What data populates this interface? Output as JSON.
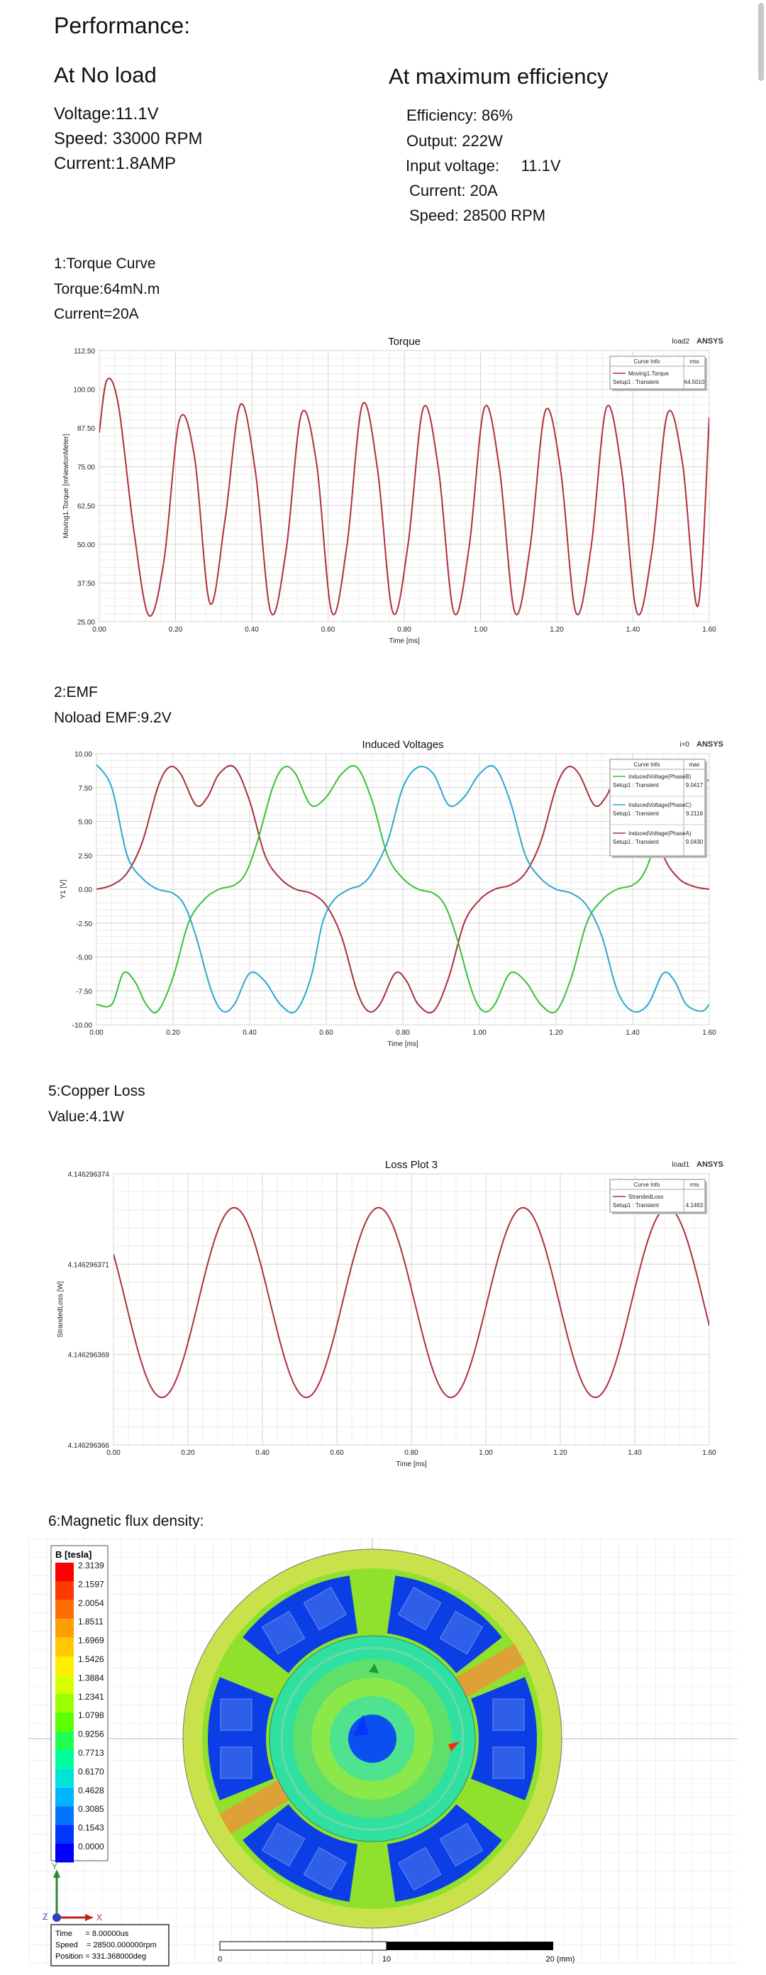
{
  "doc": {
    "title": "Performance:",
    "no_load": {
      "heading": "At No load",
      "lines": [
        "Voltage:11.1V",
        "Speed: 33000 RPM",
        "Current:1.8AMP"
      ]
    },
    "max_eff": {
      "heading": "At maximum efficiency",
      "lines": [
        "Efficiency: 86%",
        "Output: 222W",
        "Input voltage:     11.1V",
        "Current: 20A",
        "Speed: 28500 RPM"
      ]
    },
    "torque_section": {
      "lines": [
        "1:Torque Curve",
        "Torque:64mN.m",
        "Current=20A"
      ]
    },
    "emf_section": {
      "lines": [
        "2:EMF",
        "Noload EMF:9.2V"
      ]
    },
    "copper_section": {
      "lines": [
        "5:Copper Loss",
        "Value:4.1W"
      ]
    },
    "flux_section": {
      "lines": [
        "6:Magnetic flux density:"
      ]
    }
  },
  "chart_data": [
    {
      "type": "line",
      "title": "Torque",
      "tag": "load2",
      "brand": "ANSYS",
      "xlabel": "Time [ms]",
      "ylabel": "Moving1.Torque [mNewtonMeter]",
      "xlim": [
        0,
        1.6
      ],
      "ylim": [
        25,
        112.5
      ],
      "xticks": [
        "0.00",
        "0.20",
        "0.40",
        "0.60",
        "0.80",
        "1.00",
        "1.20",
        "1.40",
        "1.60"
      ],
      "yticks": [
        "25.00",
        "37.50",
        "50.00",
        "62.50",
        "75.00",
        "87.50",
        "100.00",
        "112.50"
      ],
      "legend": {
        "header": [
          "Curve Info",
          "rms"
        ],
        "entries": [
          {
            "name": "Moving1.Torque",
            "setup": "Setup1 : Transient",
            "value": "64.5010",
            "color": "#b0303a"
          }
        ]
      },
      "series": [
        {
          "name": "Moving1.Torque",
          "color": "#b0303a",
          "x": [
            0,
            0.02,
            0.05,
            0.09,
            0.13,
            0.17,
            0.21,
            0.25,
            0.29,
            0.33,
            0.37,
            0.41,
            0.45,
            0.49,
            0.53,
            0.57,
            0.61,
            0.65,
            0.69,
            0.73,
            0.77,
            0.81,
            0.85,
            0.89,
            0.93,
            0.97,
            1.01,
            1.05,
            1.09,
            1.13,
            1.17,
            1.21,
            1.25,
            1.29,
            1.33,
            1.37,
            1.41,
            1.45,
            1.49,
            1.53,
            1.57,
            1.6
          ],
          "y": [
            86,
            103,
            95,
            55,
            27,
            45,
            90,
            78,
            31,
            58,
            95,
            73,
            28,
            48,
            92,
            76,
            28,
            50,
            95,
            74,
            28,
            50,
            94,
            74,
            28,
            49,
            94,
            74,
            28,
            49,
            93,
            74,
            28,
            49,
            94,
            74,
            28,
            48,
            92,
            76,
            30,
            91
          ]
        }
      ]
    },
    {
      "type": "line",
      "title": "Induced Voltages",
      "tag": "i=0",
      "brand": "ANSYS",
      "xlabel": "Time [ms]",
      "ylabel": "Y1 [V]",
      "xlim": [
        0,
        1.6
      ],
      "ylim": [
        -10,
        10
      ],
      "xticks": [
        "0.00",
        "0.20",
        "0.40",
        "0.60",
        "0.80",
        "1.00",
        "1.20",
        "1.40",
        "1.60"
      ],
      "yticks": [
        "-10.00",
        "-7.50",
        "-5.00",
        "-2.50",
        "0.00",
        "2.50",
        "5.00",
        "7.50",
        "10.00"
      ],
      "legend": {
        "header": [
          "Curve Info",
          "max"
        ],
        "entries": [
          {
            "name": "InducedVoltage(PhaseB)",
            "setup": "Setup1 : Transient",
            "value": "9.0417",
            "color": "#39c03a"
          },
          {
            "name": "InducedVoltage(PhaseC)",
            "setup": "Setup1 : Transient",
            "value": "9.2119",
            "color": "#2ba8d0"
          },
          {
            "name": "InducedVoltage(PhaseA)",
            "setup": "Setup1 : Transient",
            "value": "9.0430",
            "color": "#a8303a"
          }
        ]
      },
      "series": [
        {
          "name": "InducedVoltage(PhaseA)",
          "color": "#a8303a",
          "x": [
            0,
            0.04,
            0.08,
            0.12,
            0.16,
            0.19,
            0.22,
            0.26,
            0.29,
            0.32,
            0.36,
            0.4,
            0.44,
            0.48,
            0.52,
            0.56,
            0.6,
            0.64,
            0.68,
            0.71,
            0.74,
            0.78,
            0.81,
            0.84,
            0.88,
            0.92,
            0.96,
            1.0,
            1.04,
            1.08,
            1.12,
            1.16,
            1.2,
            1.23,
            1.26,
            1.3,
            1.33,
            1.36,
            1.4,
            1.44,
            1.48,
            1.52,
            1.56,
            1.6
          ],
          "y": [
            0,
            0.3,
            1.2,
            3.5,
            7.5,
            9,
            8.5,
            6.2,
            6.8,
            8.5,
            9,
            6.5,
            2.5,
            0.8,
            0,
            -0.3,
            -1.2,
            -3.5,
            -7.5,
            -9,
            -8.5,
            -6.2,
            -6.8,
            -8.5,
            -9,
            -6.5,
            -2.5,
            -0.8,
            0,
            0.3,
            1.2,
            3.5,
            7.5,
            9,
            8.5,
            6.2,
            6.8,
            8.5,
            9,
            6.5,
            2.5,
            0.8,
            0.2,
            0
          ]
        },
        {
          "name": "InducedVoltage(PhaseB)",
          "color": "#39c03a",
          "x": [
            0,
            0.04,
            0.07,
            0.1,
            0.13,
            0.16,
            0.2,
            0.24,
            0.28,
            0.32,
            0.36,
            0.39,
            0.42,
            0.46,
            0.49,
            0.52,
            0.56,
            0.6,
            0.64,
            0.68,
            0.72,
            0.76,
            0.8,
            0.84,
            0.88,
            0.91,
            0.94,
            0.98,
            1.01,
            1.04,
            1.08,
            1.12,
            1.16,
            1.2,
            1.24,
            1.28,
            1.32,
            1.36,
            1.4,
            1.43,
            1.46,
            1.5,
            1.53,
            1.56,
            1.6
          ],
          "y": [
            -8.5,
            -8.5,
            -6.2,
            -6.8,
            -8.5,
            -9,
            -6.5,
            -2.5,
            -0.8,
            0,
            0.3,
            1.2,
            3.5,
            7.5,
            9,
            8.5,
            6.2,
            6.8,
            8.5,
            9,
            6.5,
            2.5,
            0.8,
            0,
            -0.3,
            -1.2,
            -3.5,
            -7.5,
            -9,
            -8.5,
            -6.2,
            -6.8,
            -8.5,
            -9,
            -6.5,
            -2.5,
            -0.8,
            0,
            0.3,
            1.2,
            3.5,
            7.5,
            9,
            8.5,
            8
          ]
        },
        {
          "name": "InducedVoltage(PhaseC)",
          "color": "#2ba8d0",
          "x": [
            0,
            0.04,
            0.08,
            0.12,
            0.16,
            0.2,
            0.23,
            0.26,
            0.3,
            0.33,
            0.36,
            0.4,
            0.44,
            0.48,
            0.52,
            0.56,
            0.59,
            0.62,
            0.66,
            0.69,
            0.72,
            0.76,
            0.8,
            0.84,
            0.88,
            0.92,
            0.96,
            1.0,
            1.04,
            1.08,
            1.12,
            1.16,
            1.2,
            1.24,
            1.28,
            1.32,
            1.36,
            1.4,
            1.44,
            1.48,
            1.51,
            1.54,
            1.58,
            1.6
          ],
          "y": [
            9.2,
            7.5,
            2.5,
            0.8,
            0,
            -0.3,
            -1.2,
            -3.5,
            -7.5,
            -9,
            -8.5,
            -6.2,
            -6.8,
            -8.5,
            -9,
            -6.5,
            -2.5,
            -0.8,
            0,
            0.3,
            1.2,
            3.5,
            7.5,
            9,
            8.5,
            6.2,
            6.8,
            8.5,
            9,
            6.5,
            2.5,
            0.8,
            0,
            -0.3,
            -1.2,
            -3.5,
            -7.5,
            -9,
            -8.5,
            -6.2,
            -6.8,
            -8.5,
            -9,
            -8.5
          ]
        }
      ]
    },
    {
      "type": "line",
      "title": "Loss Plot 3",
      "tag": "load1",
      "brand": "ANSYS",
      "xlabel": "Time [ms]",
      "ylabel": "StrandedLoss [W]",
      "xlim": [
        0,
        1.6
      ],
      "ylim": [
        4.146296366,
        4.146296374
      ],
      "xticks": [
        "0.00",
        "0.20",
        "0.40",
        "0.60",
        "0.80",
        "1.00",
        "1.20",
        "1.40",
        "1.60"
      ],
      "yticks": [
        "4.146296366",
        "4.146296369",
        "4.146296371",
        "4.146296374"
      ],
      "legend": {
        "header": [
          "Curve Info",
          "rms"
        ],
        "entries": [
          {
            "name": "StrandedLoss",
            "setup": "Setup1 : Transient",
            "value": "4.1463",
            "color": "#b0303a"
          }
        ]
      },
      "series": [
        {
          "name": "StrandedLoss",
          "color": "#b0303a",
          "amplitude": 2.8e-09,
          "center": 4.1462963702,
          "period_ms": 0.388,
          "phase_ms": 0.13
        }
      ]
    }
  ],
  "flux_map": {
    "legend_title": "B [tesla]",
    "levels": [
      "2.3139",
      "2.1597",
      "2.0054",
      "1.8511",
      "1.6969",
      "1.5426",
      "1.3884",
      "1.2341",
      "1.0798",
      "0.9256",
      "0.7713",
      "0.6170",
      "0.4628",
      "0.3085",
      "0.1543",
      "0.0000"
    ],
    "level_colors": [
      "#ff0000",
      "#ff3a00",
      "#ff6e00",
      "#ff9e00",
      "#ffc800",
      "#ffee00",
      "#d8ff00",
      "#9cff00",
      "#5cff00",
      "#20ff50",
      "#00ff9c",
      "#00e4d8",
      "#00b4ff",
      "#0074ff",
      "#0036ff",
      "#0000ff"
    ],
    "info": {
      "time": "Time      = 8.00000us",
      "speed": "Speed    = 28500.000000rpm",
      "position": "Position = 331.368000deg"
    },
    "scale": [
      "0",
      "10",
      "20 (mm)"
    ],
    "axes": {
      "y": "Y",
      "z": "Z",
      "x": "X"
    }
  }
}
